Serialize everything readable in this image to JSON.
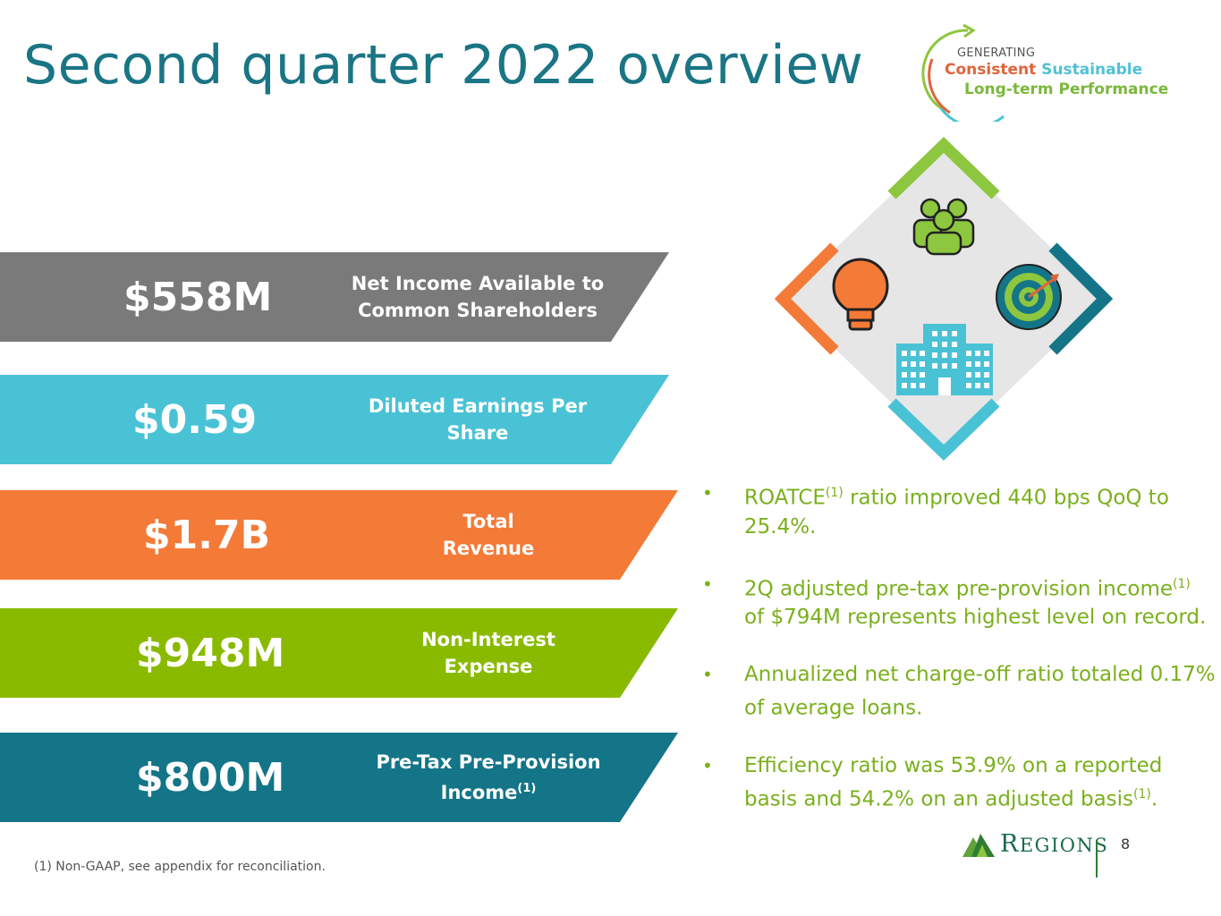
{
  "title": "Second quarter 2022 overview",
  "tagline": {
    "line1": "GENERATING",
    "consistent": "Consistent",
    "sustainable": "Sustainable",
    "line3": "Long-term Performance"
  },
  "metrics": [
    {
      "value": "$558M",
      "label_line1": "Net Income Available to",
      "label_line2": "Common Shareholders",
      "color": "#7a7a7a"
    },
    {
      "value": "$0.59",
      "label_line1": "Diluted Earnings Per",
      "label_line2": "Share",
      "color": "#4ac2d5"
    },
    {
      "value": "$1.7B",
      "label_line1": "Total",
      "label_line2": "Revenue",
      "color": "#f47a37"
    },
    {
      "value": "$948M",
      "label_line1": "Non-Interest",
      "label_line2": "Expense",
      "color": "#8aba00"
    },
    {
      "value": "$800M",
      "label_line1": "Pre-Tax Pre-Provision",
      "label_line2": "Income",
      "label_sup": "(1)",
      "color": "#137587"
    }
  ],
  "bullets": [
    {
      "pre": "ROATCE",
      "sup": "(1)",
      "post": " ratio improved 440 bps QoQ to 25.4%."
    },
    {
      "pre": "2Q adjusted pre-tax pre-provision income",
      "sup": "(1)",
      "post": " of $794M represents highest level on record."
    },
    {
      "pre": "Annualized net charge-off ratio totaled 0.17% of average loans.",
      "sup": "",
      "post": ""
    },
    {
      "pre": "Efficiency ratio was 53.9% on a reported basis and 54.2% on an adjusted basis",
      "sup": "(1)",
      "post": "."
    }
  ],
  "bullet_symbol": "•",
  "footnote": "(1) Non-GAAP, see appendix for reconciliation.",
  "logo": {
    "initial_r": "R",
    "rest": "EGIONS",
    "initial_rest_alt": ""
  },
  "page_number": "8",
  "icons": {
    "team": "people-group-icon",
    "idea": "lightbulb-icon",
    "target": "target-icon",
    "building": "building-icon",
    "brand": "regions-pyramid-icon"
  },
  "graphic_colors": {
    "green": "#8dc63f",
    "orange": "#f47a37",
    "teal": "#137587",
    "cyan": "#4ac2d5",
    "diamond": "#e6e6e6"
  }
}
